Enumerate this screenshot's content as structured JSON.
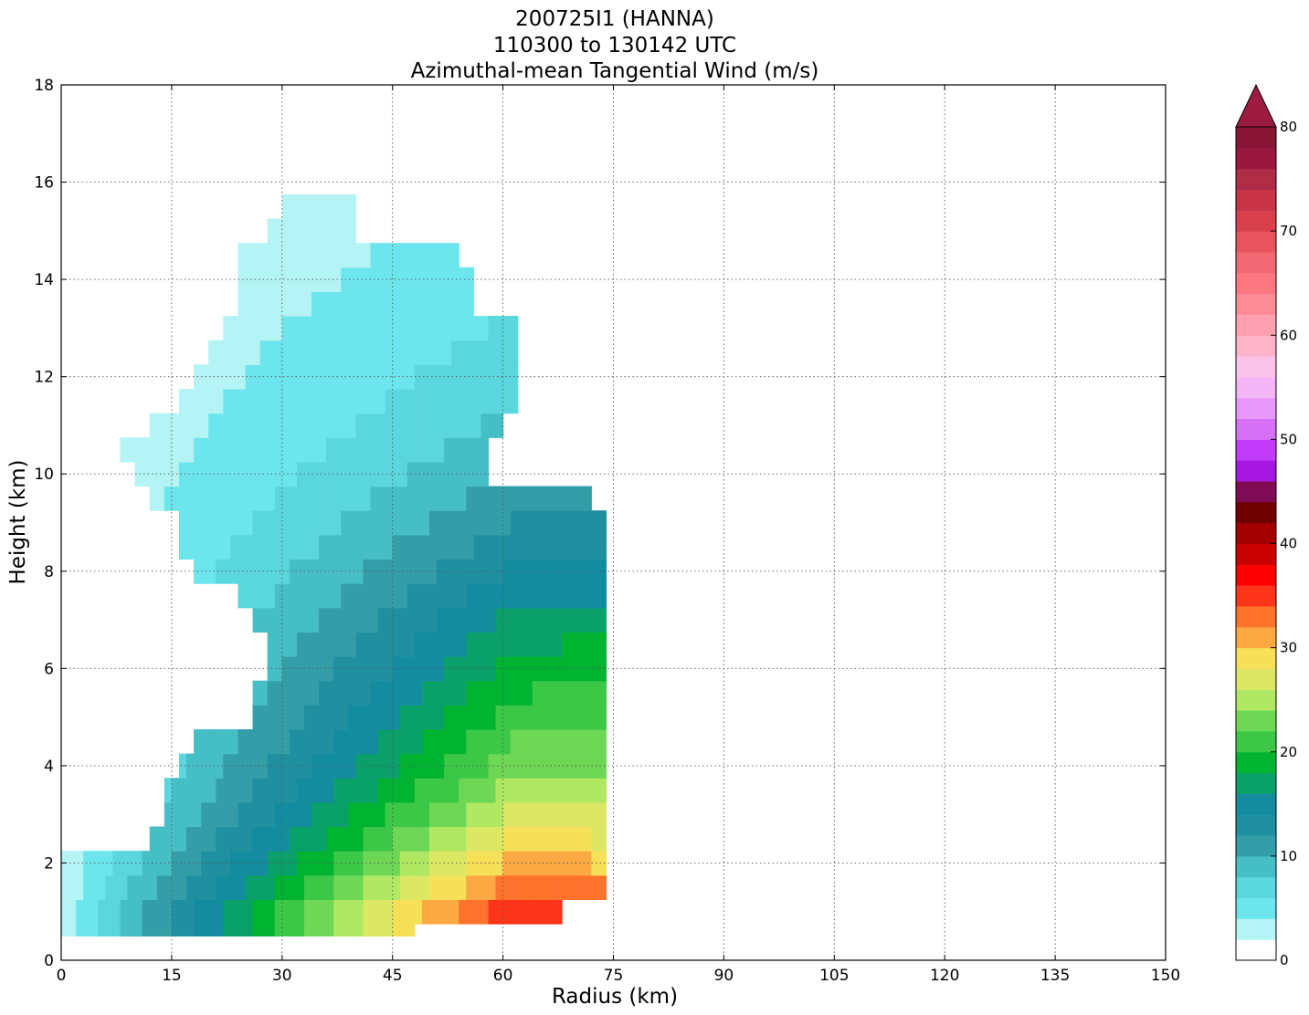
{
  "chart_data": {
    "type": "heatmap",
    "subtype": "filled-contour",
    "title_lines": [
      "200725I1 (HANNA)",
      "110300 to 130142 UTC",
      "Azimuthal-mean Tangential Wind (m/s)"
    ],
    "xlabel": "Radius (km)",
    "ylabel": "Height (km)",
    "xlim": [
      0,
      150
    ],
    "ylim": [
      0,
      18
    ],
    "xticks": [
      0,
      15,
      30,
      45,
      60,
      75,
      90,
      105,
      120,
      135,
      150
    ],
    "yticks": [
      0,
      2,
      4,
      6,
      8,
      10,
      12,
      14,
      16,
      18
    ],
    "grid": true,
    "colorbar": {
      "range": [
        0,
        80
      ],
      "step": 2,
      "extend": "max",
      "ticks": [
        0,
        10,
        20,
        30,
        40,
        50,
        60,
        70,
        80
      ],
      "colors": [
        "#ffffff",
        "#b4f4f4",
        "#6ce6ec",
        "#5ad7dc",
        "#46bec6",
        "#349ea8",
        "#2090a0",
        "#148ca0",
        "#0aa06a",
        "#00b432",
        "#3cc846",
        "#6ed756",
        "#b0e864",
        "#dce864",
        "#f6e058",
        "#fca843",
        "#fd732c",
        "#fd351a",
        "#ff0000",
        "#c80000",
        "#a50000",
        "#700000",
        "#800b55",
        "#a517e1",
        "#c13cf6",
        "#d670f7",
        "#e697f7",
        "#f2b5f5",
        "#fac3e8",
        "#fdb4cb",
        "#fd9faf",
        "#fc8b98",
        "#fb7883",
        "#f26873",
        "#e8545e",
        "#d8404c",
        "#c53546",
        "#af2c47",
        "#99183f",
        "#881436"
      ],
      "extend_color": "#9b1b41"
    },
    "levels_ms": [
      0,
      2,
      4,
      6,
      8,
      10,
      12,
      14,
      16,
      18,
      20,
      22,
      24,
      26,
      28,
      30,
      32,
      34
    ],
    "radius_km": [
      0,
      3,
      6,
      9,
      12,
      15,
      18,
      21,
      24,
      27,
      30,
      33,
      36,
      39,
      42,
      45,
      48,
      51,
      54,
      57,
      60,
      63,
      66,
      69,
      72,
      75
    ],
    "height_km": [
      0.5,
      1.0,
      1.5,
      2.0,
      2.5,
      3.0,
      3.5,
      4.0,
      4.5,
      5.0,
      5.5,
      6.0,
      6.5,
      7.0,
      7.5,
      8.0,
      8.5,
      9.0,
      9.5,
      10.0,
      10.5,
      11.0,
      11.5,
      12.0,
      12.5,
      13.0,
      13.5,
      14.0,
      14.5,
      15.0,
      15.5
    ],
    "coverage_by_height": [
      {
        "z": 0.5,
        "r": [
          0,
          48
        ]
      },
      {
        "z": 1.0,
        "r": [
          0,
          68
        ]
      },
      {
        "z": 1.5,
        "r": [
          0,
          74
        ]
      },
      {
        "z": 2.0,
        "r": [
          0,
          74
        ]
      },
      {
        "z": 2.5,
        "r": [
          12,
          74
        ]
      },
      {
        "z": 3.0,
        "r": [
          14,
          74
        ]
      },
      {
        "z": 3.5,
        "r": [
          14,
          74
        ]
      },
      {
        "z": 4.0,
        "r": [
          16,
          74
        ]
      },
      {
        "z": 4.5,
        "r": [
          18,
          74
        ]
      },
      {
        "z": 5.0,
        "r": [
          26,
          74
        ]
      },
      {
        "z": 5.5,
        "r": [
          26,
          74
        ]
      },
      {
        "z": 6.0,
        "r": [
          28,
          74
        ]
      },
      {
        "z": 6.5,
        "r": [
          28,
          74
        ]
      },
      {
        "z": 7.0,
        "r": [
          26,
          74
        ]
      },
      {
        "z": 7.5,
        "r": [
          24,
          74
        ]
      },
      {
        "z": 8.0,
        "r": [
          18,
          74
        ]
      },
      {
        "z": 8.5,
        "r": [
          16,
          74
        ]
      },
      {
        "z": 9.0,
        "r": [
          16,
          74
        ]
      },
      {
        "z": 9.5,
        "r": [
          12,
          72
        ]
      },
      {
        "z": 10.0,
        "r": [
          10,
          58
        ]
      },
      {
        "z": 10.5,
        "r": [
          8,
          58
        ]
      },
      {
        "z": 11.0,
        "r": [
          12,
          60
        ]
      },
      {
        "z": 11.5,
        "r": [
          16,
          62
        ]
      },
      {
        "z": 12.0,
        "r": [
          18,
          62
        ]
      },
      {
        "z": 12.5,
        "r": [
          20,
          62
        ]
      },
      {
        "z": 13.0,
        "r": [
          22,
          62
        ]
      },
      {
        "z": 13.5,
        "r": [
          24,
          56
        ]
      },
      {
        "z": 14.0,
        "r": [
          24,
          56
        ]
      },
      {
        "z": 14.5,
        "r": [
          24,
          54
        ]
      },
      {
        "z": 15.0,
        "r": [
          28,
          40
        ]
      },
      {
        "z": 15.5,
        "r": [
          30,
          40
        ]
      }
    ]
  }
}
